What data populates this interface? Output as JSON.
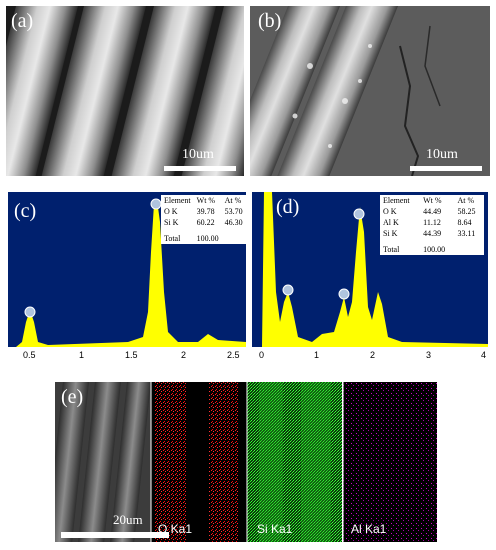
{
  "panels": {
    "a": {
      "label": "(a)",
      "scale": "10um"
    },
    "b": {
      "label": "(b)",
      "scale": "10um"
    },
    "c": {
      "label": "(c)",
      "table": {
        "headers": [
          "Element",
          "Wt %",
          "At %"
        ],
        "rows": [
          [
            "O K",
            "39.78",
            "53.70"
          ],
          [
            "Si K",
            "60.22",
            "46.30"
          ]
        ],
        "total": [
          "Total",
          "100.00"
        ]
      },
      "peaks": [
        "O",
        "Si"
      ],
      "ticks": [
        "0.5",
        "1",
        "1.5",
        "2",
        "2.5"
      ]
    },
    "d": {
      "label": "(d)",
      "table": {
        "headers": [
          "Element",
          "Wt %",
          "At %"
        ],
        "rows": [
          [
            "O K",
            "44.49",
            "58.25"
          ],
          [
            "Al K",
            "11.12",
            "8.64"
          ],
          [
            "Si K",
            "44.39",
            "33.11"
          ]
        ],
        "total": [
          "Total",
          "100.00"
        ]
      },
      "peaks": [
        "O",
        "Al",
        "Si"
      ],
      "ticks": [
        "0",
        "1",
        "2",
        "3",
        "4"
      ]
    },
    "e": {
      "label": "(e)",
      "scale": "20um",
      "maps": [
        "O Ka1",
        "Si Ka1",
        "Al Ka1"
      ]
    }
  },
  "colors": {
    "eds_bg": "#00206e",
    "eds_peak": "#ffff00",
    "o_map": "#ff0000",
    "si_map": "#00ff00",
    "al_map": "#cc00cc"
  }
}
